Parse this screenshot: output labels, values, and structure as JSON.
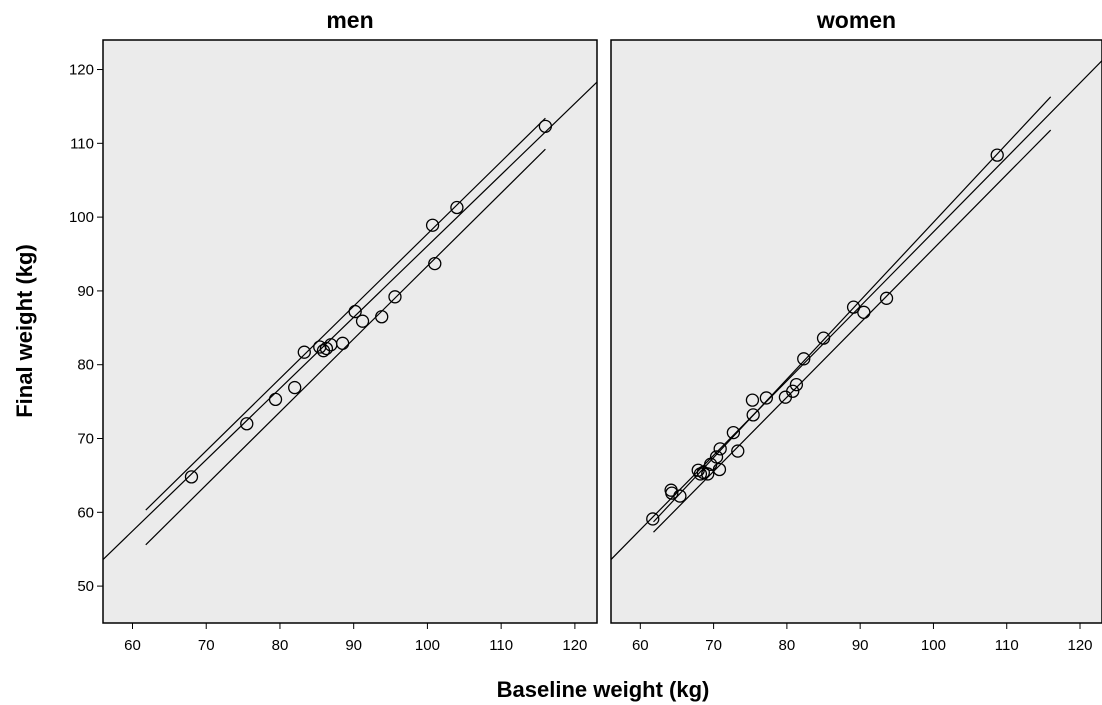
{
  "chart_data": {
    "type": "scatter",
    "xlabel": "Baseline weight (kg)",
    "ylabel": "Final weight (kg)",
    "xlim": [
      56,
      123
    ],
    "ylim": [
      45,
      124
    ],
    "xticks": [
      60,
      70,
      80,
      90,
      100,
      110,
      120
    ],
    "yticks": [
      50,
      60,
      70,
      80,
      90,
      100,
      110,
      120
    ],
    "grid": false,
    "panels": [
      {
        "title": "men",
        "points": [
          [
            68.0,
            64.8
          ],
          [
            75.5,
            72.0
          ],
          [
            79.4,
            75.3
          ],
          [
            82.0,
            76.9
          ],
          [
            83.3,
            81.7
          ],
          [
            85.4,
            82.4
          ],
          [
            85.9,
            81.9
          ],
          [
            86.3,
            82.2
          ],
          [
            86.9,
            82.7
          ],
          [
            88.5,
            82.9
          ],
          [
            90.2,
            87.2
          ],
          [
            91.2,
            85.9
          ],
          [
            93.8,
            86.5
          ],
          [
            95.6,
            89.2
          ],
          [
            100.7,
            98.9
          ],
          [
            101.0,
            93.7
          ],
          [
            104.0,
            101.3
          ],
          [
            116.0,
            112.3
          ]
        ],
        "fit_line": [
          [
            56,
            53.6
          ],
          [
            123,
            118.3
          ]
        ],
        "ci_upper": [
          [
            61.8,
            60.3
          ],
          [
            116.0,
            113.4
          ]
        ],
        "ci_lower": [
          [
            61.8,
            55.6
          ],
          [
            116.0,
            109.2
          ]
        ]
      },
      {
        "title": "women",
        "points": [
          [
            61.7,
            59.1
          ],
          [
            64.2,
            63.0
          ],
          [
            64.3,
            62.6
          ],
          [
            65.4,
            62.2
          ],
          [
            67.9,
            65.7
          ],
          [
            68.2,
            65.2
          ],
          [
            68.6,
            65.4
          ],
          [
            69.2,
            65.2
          ],
          [
            69.6,
            66.5
          ],
          [
            70.4,
            67.5
          ],
          [
            70.8,
            65.8
          ],
          [
            70.9,
            68.6
          ],
          [
            72.7,
            70.8
          ],
          [
            73.3,
            68.3
          ],
          [
            75.3,
            75.2
          ],
          [
            75.4,
            73.2
          ],
          [
            77.2,
            75.5
          ],
          [
            79.8,
            75.6
          ],
          [
            80.8,
            76.4
          ],
          [
            81.3,
            77.3
          ],
          [
            82.3,
            80.8
          ],
          [
            85.0,
            83.6
          ],
          [
            89.1,
            87.8
          ],
          [
            90.5,
            87.1
          ],
          [
            93.6,
            89.0
          ],
          [
            108.7,
            108.4
          ]
        ],
        "fit_line": [
          [
            56,
            53.6
          ],
          [
            123,
            121.2
          ]
        ],
        "ci_upper": [
          [
            61.8,
            58.7
          ],
          [
            116.0,
            116.3
          ]
        ],
        "ci_lower": [
          [
            61.8,
            57.3
          ],
          [
            116.0,
            111.8
          ]
        ]
      }
    ]
  }
}
